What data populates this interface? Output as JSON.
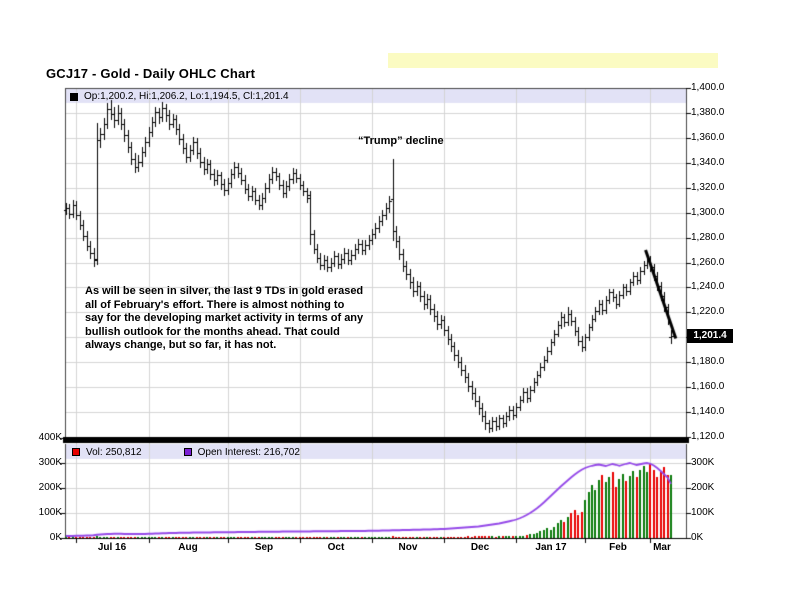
{
  "header": {
    "title": "GCJ17 - Gold - Daily OHLC Chart",
    "highlight_color": "#FBFBC2"
  },
  "main_pane": {
    "info_bar": {
      "marker_color": "#000000",
      "text": "Op:1,200.2, Hi:1,206.2, Lo:1,194.5, Cl:1,201.4"
    },
    "last_price_label": "1,201.4",
    "annotations": {
      "trump": "“Trump” decline",
      "commentary": "As will be seen in silver, the last 9 TDs in gold erased\nall of February's effort.  There is almost nothing to\nsay for the developing market activity in terms of any\nbullish outlook for the months ahead.  That could\nalways change, but so far, it has not."
    }
  },
  "volume_pane": {
    "legend": [
      {
        "label": "Vol: 250,812",
        "color": "#E80000"
      },
      {
        "label": "Open Interest: 216,702",
        "color": "#7A1FD6"
      }
    ]
  },
  "chart_data": {
    "type": "ohlc",
    "title": "GCJ17 - Gold - Daily OHLC Chart",
    "last_quote": {
      "open": 1200.2,
      "high": 1206.2,
      "low": 1194.5,
      "close": 1201.4
    },
    "volume_last": 250812,
    "open_interest_last": 216702,
    "price_axis": {
      "min": 1120,
      "max": 1400,
      "tick_step": 20,
      "tick_values": [
        1400,
        1380,
        1360,
        1340,
        1320,
        1300,
        1280,
        1260,
        1240,
        1220,
        1200,
        1180,
        1160,
        1140,
        1120
      ],
      "tick_labels": [
        "1,400.0",
        "1,380.0",
        "1,360.0",
        "1,340.0",
        "1,320.0",
        "1,300.0",
        "1,280.0",
        "1,260.0",
        "1,240.0",
        "1,220.0",
        "1,200.0",
        "1,180.0",
        "1,160.0",
        "1,140.0",
        "1,120.0"
      ],
      "highlight_value": 1201.4
    },
    "volume_axis": {
      "min": 0,
      "max_left": 400,
      "left_tick_values": [
        400,
        300,
        200,
        100,
        0
      ],
      "left_tick_labels": [
        "400K",
        "300K",
        "200K",
        "100K",
        "0K"
      ],
      "right_tick_values": [
        300,
        200,
        100,
        0
      ],
      "right_tick_labels": [
        "300K",
        "200K",
        "100K",
        "0K"
      ]
    },
    "months": [
      {
        "label": "Jul 16",
        "start_index": 3
      },
      {
        "label": "Aug",
        "start_index": 24
      },
      {
        "label": "Sep",
        "start_index": 47
      },
      {
        "label": "Oct",
        "start_index": 68
      },
      {
        "label": "Nov",
        "start_index": 89
      },
      {
        "label": "Dec",
        "start_index": 110
      },
      {
        "label": "Jan 17",
        "start_index": 131
      },
      {
        "label": "Feb",
        "start_index": 151
      },
      {
        "label": "Mar",
        "start_index": 170
      }
    ],
    "ohlc": [
      [
        1302,
        1308,
        1298,
        1304
      ],
      [
        1304,
        1307,
        1295,
        1299
      ],
      [
        1299,
        1310,
        1296,
        1306
      ],
      [
        1306,
        1309,
        1294,
        1298
      ],
      [
        1298,
        1301,
        1286,
        1290
      ],
      [
        1290,
        1294,
        1277,
        1281
      ],
      [
        1281,
        1285,
        1269,
        1273
      ],
      [
        1273,
        1277,
        1263,
        1268
      ],
      [
        1268,
        1272,
        1256,
        1262
      ],
      [
        1263,
        1372,
        1258,
        1358
      ],
      [
        1358,
        1368,
        1352,
        1363
      ],
      [
        1363,
        1376,
        1358,
        1371
      ],
      [
        1371,
        1388,
        1367,
        1383
      ],
      [
        1383,
        1390,
        1374,
        1379
      ],
      [
        1379,
        1385,
        1368,
        1374
      ],
      [
        1374,
        1386,
        1370,
        1380
      ],
      [
        1380,
        1384,
        1366,
        1371
      ],
      [
        1371,
        1375,
        1357,
        1362
      ],
      [
        1362,
        1366,
        1348,
        1353
      ],
      [
        1353,
        1357,
        1338,
        1343
      ],
      [
        1343,
        1348,
        1332,
        1337
      ],
      [
        1337,
        1346,
        1333,
        1341
      ],
      [
        1341,
        1353,
        1337,
        1349
      ],
      [
        1349,
        1361,
        1345,
        1357
      ],
      [
        1357,
        1369,
        1353,
        1365
      ],
      [
        1365,
        1377,
        1361,
        1373
      ],
      [
        1373,
        1385,
        1369,
        1381
      ],
      [
        1381,
        1384,
        1371,
        1377
      ],
      [
        1377,
        1389,
        1373,
        1384
      ],
      [
        1384,
        1387,
        1373,
        1378
      ],
      [
        1378,
        1382,
        1366,
        1371
      ],
      [
        1371,
        1379,
        1368,
        1375
      ],
      [
        1375,
        1378,
        1362,
        1367
      ],
      [
        1367,
        1371,
        1354,
        1359
      ],
      [
        1359,
        1363,
        1347,
        1352
      ],
      [
        1352,
        1356,
        1340,
        1345
      ],
      [
        1345,
        1354,
        1341,
        1350
      ],
      [
        1350,
        1361,
        1346,
        1357
      ],
      [
        1357,
        1360,
        1343,
        1348
      ],
      [
        1348,
        1352,
        1336,
        1341
      ],
      [
        1341,
        1345,
        1330,
        1335
      ],
      [
        1335,
        1343,
        1331,
        1339
      ],
      [
        1339,
        1342,
        1326,
        1331
      ],
      [
        1331,
        1335,
        1321,
        1326
      ],
      [
        1326,
        1334,
        1322,
        1330
      ],
      [
        1330,
        1333,
        1318,
        1323
      ],
      [
        1323,
        1327,
        1313,
        1318
      ],
      [
        1318,
        1328,
        1314,
        1324
      ],
      [
        1324,
        1335,
        1320,
        1331
      ],
      [
        1331,
        1341,
        1327,
        1337
      ],
      [
        1337,
        1340,
        1328,
        1332
      ],
      [
        1332,
        1336,
        1322,
        1326
      ],
      [
        1326,
        1330,
        1315,
        1319
      ],
      [
        1319,
        1323,
        1309,
        1313
      ],
      [
        1313,
        1321,
        1309,
        1317
      ],
      [
        1317,
        1320,
        1306,
        1310
      ],
      [
        1310,
        1314,
        1302,
        1306
      ],
      [
        1306,
        1316,
        1302,
        1312
      ],
      [
        1312,
        1324,
        1308,
        1320
      ],
      [
        1320,
        1331,
        1316,
        1327
      ],
      [
        1327,
        1337,
        1323,
        1333
      ],
      [
        1333,
        1336,
        1325,
        1329
      ],
      [
        1329,
        1332,
        1318,
        1322
      ],
      [
        1322,
        1326,
        1312,
        1316
      ],
      [
        1316,
        1325,
        1312,
        1321
      ],
      [
        1321,
        1331,
        1317,
        1327
      ],
      [
        1327,
        1336,
        1323,
        1332
      ],
      [
        1332,
        1335,
        1324,
        1328
      ],
      [
        1328,
        1331,
        1318,
        1322
      ],
      [
        1322,
        1325,
        1313,
        1317
      ],
      [
        1317,
        1320,
        1308,
        1312
      ],
      [
        1314,
        1317,
        1274,
        1283
      ],
      [
        1283,
        1286,
        1267,
        1271
      ],
      [
        1271,
        1275,
        1260,
        1264
      ],
      [
        1264,
        1268,
        1254,
        1258
      ],
      [
        1258,
        1266,
        1254,
        1262
      ],
      [
        1262,
        1265,
        1252,
        1256
      ],
      [
        1256,
        1264,
        1252,
        1260
      ],
      [
        1260,
        1269,
        1256,
        1265
      ],
      [
        1265,
        1268,
        1255,
        1259
      ],
      [
        1259,
        1267,
        1255,
        1263
      ],
      [
        1263,
        1272,
        1259,
        1268
      ],
      [
        1268,
        1271,
        1258,
        1262
      ],
      [
        1262,
        1270,
        1258,
        1266
      ],
      [
        1266,
        1275,
        1262,
        1271
      ],
      [
        1271,
        1279,
        1267,
        1275
      ],
      [
        1275,
        1278,
        1266,
        1270
      ],
      [
        1270,
        1278,
        1266,
        1274
      ],
      [
        1274,
        1282,
        1270,
        1278
      ],
      [
        1278,
        1287,
        1274,
        1283
      ],
      [
        1283,
        1292,
        1279,
        1288
      ],
      [
        1288,
        1297,
        1284,
        1293
      ],
      [
        1293,
        1302,
        1289,
        1298
      ],
      [
        1298,
        1308,
        1294,
        1304
      ],
      [
        1304,
        1313,
        1300,
        1309
      ],
      [
        1311,
        1343,
        1277,
        1285
      ],
      [
        1285,
        1289,
        1272,
        1277
      ],
      [
        1277,
        1281,
        1262,
        1267
      ],
      [
        1267,
        1271,
        1252,
        1257
      ],
      [
        1257,
        1261,
        1246,
        1251
      ],
      [
        1251,
        1255,
        1239,
        1244
      ],
      [
        1244,
        1248,
        1232,
        1237
      ],
      [
        1237,
        1245,
        1233,
        1241
      ],
      [
        1241,
        1244,
        1228,
        1233
      ],
      [
        1233,
        1237,
        1222,
        1227
      ],
      [
        1227,
        1235,
        1223,
        1231
      ],
      [
        1231,
        1234,
        1218,
        1223
      ],
      [
        1223,
        1227,
        1212,
        1217
      ],
      [
        1217,
        1221,
        1206,
        1211
      ],
      [
        1211,
        1218,
        1207,
        1214
      ],
      [
        1214,
        1217,
        1201,
        1206
      ],
      [
        1206,
        1209,
        1194,
        1199
      ],
      [
        1199,
        1203,
        1188,
        1193
      ],
      [
        1193,
        1196,
        1181,
        1186
      ],
      [
        1186,
        1190,
        1175,
        1180
      ],
      [
        1180,
        1184,
        1169,
        1174
      ],
      [
        1174,
        1178,
        1163,
        1168
      ],
      [
        1168,
        1171,
        1156,
        1161
      ],
      [
        1161,
        1165,
        1150,
        1155
      ],
      [
        1155,
        1159,
        1144,
        1149
      ],
      [
        1149,
        1153,
        1138,
        1143
      ],
      [
        1143,
        1147,
        1132,
        1137
      ],
      [
        1137,
        1141,
        1126,
        1131
      ],
      [
        1131,
        1134,
        1123,
        1127
      ],
      [
        1127,
        1136,
        1124,
        1133
      ],
      [
        1133,
        1136,
        1125,
        1129
      ],
      [
        1129,
        1138,
        1126,
        1135
      ],
      [
        1135,
        1138,
        1127,
        1131
      ],
      [
        1131,
        1140,
        1128,
        1137
      ],
      [
        1137,
        1145,
        1133,
        1142
      ],
      [
        1142,
        1145,
        1134,
        1138
      ],
      [
        1138,
        1147,
        1135,
        1144
      ],
      [
        1144,
        1153,
        1141,
        1150
      ],
      [
        1150,
        1159,
        1147,
        1156
      ],
      [
        1156,
        1159,
        1147,
        1151
      ],
      [
        1151,
        1161,
        1148,
        1158
      ],
      [
        1158,
        1167,
        1155,
        1164
      ],
      [
        1164,
        1173,
        1161,
        1170
      ],
      [
        1170,
        1179,
        1167,
        1176
      ],
      [
        1176,
        1185,
        1173,
        1182
      ],
      [
        1182,
        1192,
        1179,
        1189
      ],
      [
        1189,
        1199,
        1186,
        1196
      ],
      [
        1196,
        1206,
        1193,
        1203
      ],
      [
        1203,
        1213,
        1200,
        1210
      ],
      [
        1210,
        1220,
        1207,
        1216
      ],
      [
        1216,
        1219,
        1208,
        1212
      ],
      [
        1212,
        1224,
        1209,
        1219
      ],
      [
        1219,
        1222,
        1209,
        1213
      ],
      [
        1213,
        1216,
        1201,
        1205
      ],
      [
        1205,
        1208,
        1193,
        1197
      ],
      [
        1197,
        1201,
        1188,
        1192
      ],
      [
        1192,
        1203,
        1189,
        1200
      ],
      [
        1200,
        1211,
        1197,
        1208
      ],
      [
        1208,
        1218,
        1205,
        1215
      ],
      [
        1215,
        1224,
        1212,
        1221
      ],
      [
        1221,
        1230,
        1218,
        1227
      ],
      [
        1227,
        1230,
        1218,
        1222
      ],
      [
        1222,
        1233,
        1219,
        1230
      ],
      [
        1230,
        1239,
        1227,
        1236
      ],
      [
        1236,
        1239,
        1228,
        1232
      ],
      [
        1232,
        1235,
        1223,
        1227
      ],
      [
        1227,
        1237,
        1224,
        1234
      ],
      [
        1234,
        1243,
        1231,
        1240
      ],
      [
        1240,
        1243,
        1233,
        1237
      ],
      [
        1237,
        1247,
        1234,
        1244
      ],
      [
        1244,
        1252,
        1241,
        1249
      ],
      [
        1249,
        1252,
        1242,
        1246
      ],
      [
        1246,
        1256,
        1243,
        1253
      ],
      [
        1253,
        1261,
        1250,
        1258
      ],
      [
        1258,
        1266,
        1255,
        1263
      ],
      [
        1263,
        1265,
        1252,
        1256
      ],
      [
        1256,
        1259,
        1245,
        1249
      ],
      [
        1249,
        1252,
        1237,
        1241
      ],
      [
        1241,
        1244,
        1229,
        1233
      ],
      [
        1233,
        1236,
        1220,
        1224
      ],
      [
        1224,
        1227,
        1210,
        1214
      ],
      [
        1200.2,
        1206.2,
        1194.5,
        1201.4
      ]
    ],
    "volume_k": [
      1,
      2,
      1,
      2,
      3,
      2,
      1,
      2,
      4,
      6,
      3,
      2,
      3,
      2,
      2,
      3,
      2,
      2,
      1,
      2,
      2,
      1,
      2,
      2,
      2,
      1,
      2,
      3,
      2,
      1,
      2,
      2,
      1,
      2,
      1,
      2,
      2,
      1,
      2,
      1,
      1,
      2,
      2,
      1,
      2,
      1,
      2,
      2,
      1,
      2,
      2,
      3,
      2,
      1,
      2,
      2,
      1,
      2,
      2,
      1,
      2,
      1,
      2,
      2,
      1,
      2,
      2,
      1,
      2,
      1,
      2,
      5,
      4,
      3,
      2,
      2,
      1,
      2,
      2,
      1,
      2,
      2,
      1,
      2,
      2,
      1,
      2,
      1,
      2,
      2,
      2,
      3,
      2,
      3,
      3,
      6,
      4,
      3,
      3,
      2,
      3,
      2,
      2,
      3,
      2,
      2,
      3,
      2,
      3,
      3,
      3,
      4,
      3,
      4,
      5,
      4,
      5,
      6,
      5,
      7,
      6,
      8,
      7,
      9,
      6,
      5,
      7,
      6,
      8,
      7,
      6,
      6,
      7,
      9,
      11,
      14,
      17,
      21,
      26,
      32,
      38,
      33,
      45,
      58,
      72,
      65,
      82,
      98,
      112,
      92,
      105,
      150,
      182,
      212,
      192,
      232,
      252,
      222,
      242,
      262,
      202,
      237,
      257,
      227,
      247,
      267,
      242,
      272,
      287,
      262,
      297,
      272,
      242,
      262,
      282,
      252,
      251
    ],
    "open_interest_k": [
      8,
      8,
      8,
      9,
      9,
      9,
      10,
      10,
      11,
      13,
      14,
      15,
      16,
      16,
      17,
      17,
      17,
      16,
      16,
      16,
      16,
      16,
      16,
      16,
      17,
      17,
      18,
      18,
      19,
      19,
      20,
      20,
      20,
      21,
      21,
      21,
      21,
      22,
      22,
      22,
      22,
      22,
      22,
      23,
      23,
      23,
      23,
      23,
      23,
      23,
      24,
      24,
      24,
      24,
      24,
      24,
      25,
      25,
      25,
      25,
      25,
      25,
      25,
      26,
      26,
      26,
      26,
      26,
      26,
      26,
      26,
      26,
      27,
      27,
      27,
      27,
      27,
      27,
      27,
      27,
      28,
      28,
      28,
      28,
      28,
      28,
      28,
      28,
      29,
      29,
      29,
      29,
      30,
      30,
      30,
      31,
      31,
      31,
      32,
      32,
      32,
      33,
      33,
      33,
      34,
      34,
      34,
      35,
      35,
      36,
      36,
      37,
      38,
      39,
      40,
      41,
      42,
      43,
      44,
      45,
      46,
      48,
      50,
      52,
      54,
      56,
      58,
      61,
      64,
      67,
      70,
      74,
      79,
      85,
      92,
      100,
      109,
      119,
      130,
      142,
      155,
      168,
      181,
      194,
      207,
      219,
      231,
      243,
      254,
      264,
      273,
      280,
      285,
      289,
      292,
      294,
      291,
      288,
      292,
      296,
      293,
      289,
      293,
      297,
      300,
      296,
      292,
      295,
      298,
      300,
      297,
      290,
      280,
      268,
      255,
      242,
      216.7
    ],
    "trend_line": {
      "from_index": 168.6,
      "from_price": 1270,
      "to_index": 177.4,
      "to_price": 1199
    },
    "colors": {
      "bar": "#000000",
      "vol_up": "#0A7A0A",
      "vol_down": "#E80000",
      "open_interest": "#9448E8",
      "grid": "#D4D4D4",
      "strip_bg": "#E2E2F6",
      "border": "#444444",
      "separator": "#000000"
    },
    "layout_hints": {
      "grid": true,
      "price_axis_side": "right",
      "volume_axis_sides": "both",
      "legend_position": "top-inside"
    }
  }
}
